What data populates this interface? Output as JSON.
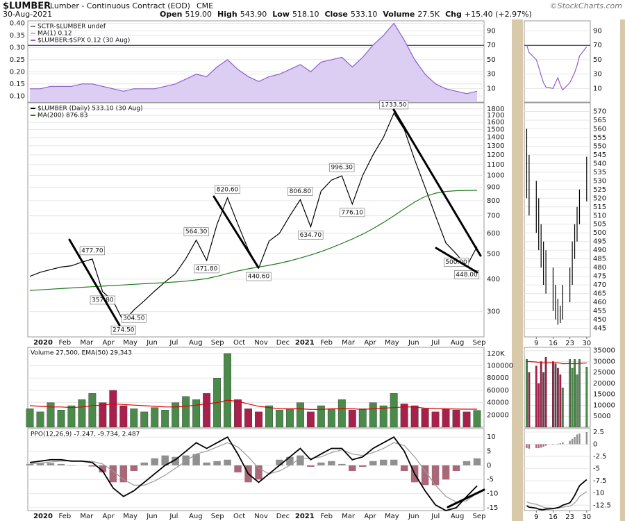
{
  "header": {
    "symbol": "$LUMBER",
    "name": "Lumber - Continuous Contract (EOD)",
    "exchange": "CME",
    "credit": "©StockCharts.com",
    "date": "30-Aug-2021",
    "quote": [
      {
        "label": "Open",
        "value": "519.00"
      },
      {
        "label": "High",
        "value": "543.90"
      },
      {
        "label": "Low",
        "value": "518.10"
      },
      {
        "label": "Close",
        "value": "533.10"
      },
      {
        "label": "Volume",
        "value": "27.5K"
      },
      {
        "label": "Chg",
        "value": "+15.40 (+2.97%)"
      }
    ]
  },
  "chart_data": [
    {
      "type": "area",
      "legend_text": [
        "SCTR-$LUMBER undef",
        "MA(1) 0.12"
      ],
      "series": [
        {
          "name": "$LUMBER:$SPX 0.12 (30 Aug)",
          "type": "area",
          "color": "#8c60c8",
          "fill": "#dccdf3",
          "values": [
            0.13,
            0.13,
            0.14,
            0.14,
            0.14,
            0.15,
            0.15,
            0.14,
            0.13,
            0.12,
            0.13,
            0.13,
            0.13,
            0.14,
            0.15,
            0.17,
            0.19,
            0.18,
            0.22,
            0.25,
            0.21,
            0.18,
            0.16,
            0.18,
            0.19,
            0.21,
            0.23,
            0.2,
            0.24,
            0.25,
            0.26,
            0.22,
            0.26,
            0.31,
            0.35,
            0.4,
            0.33,
            0.25,
            0.19,
            0.15,
            0.13,
            0.12,
            0.11,
            0.12
          ]
        }
      ],
      "ylim": [
        0.075,
        0.41
      ],
      "yticks": [
        {
          "value": 0.1,
          "label": "0.10"
        },
        {
          "value": 0.15,
          "label": "0.15"
        },
        {
          "value": 0.2,
          "label": "0.20"
        },
        {
          "value": 0.25,
          "label": "0.25"
        },
        {
          "value": 0.3,
          "label": "0.30"
        },
        {
          "value": 0.35,
          "label": "0.35"
        },
        {
          "value": 0.4,
          "label": "0.40"
        }
      ],
      "y2lim": [
        -9,
        104
      ],
      "y2ticks": [
        10,
        30,
        50,
        70,
        90
      ],
      "reference_line": 70,
      "grid": true
    },
    {
      "type": "line",
      "log_scale": true,
      "grid": true,
      "series": [
        {
          "name": "$LUMBER (Daily) 533.10 (30 Aug)",
          "type": "line",
          "color": "#000000",
          "values": [
            410,
            425,
            435,
            445,
            450,
            465,
            477.7,
            357.8,
            330,
            274.5,
            304.5,
            330,
            360,
            390,
            420,
            480,
            564.3,
            471.8,
            650,
            820.6,
            650,
            520,
            440.6,
            560,
            600,
            700,
            806.8,
            634.7,
            870,
            960,
            996.3,
            776.1,
            1000,
            1200,
            1400,
            1733.5,
            1500,
            1150,
            900,
            700,
            550,
            500,
            448,
            533.1
          ]
        },
        {
          "name": "MA(200) 876.83",
          "type": "line",
          "color": "#1e7a1e",
          "values": [
            362,
            364,
            366,
            368,
            370,
            372,
            374,
            376,
            378,
            380,
            382,
            384,
            386,
            388,
            390,
            393,
            397,
            402,
            410,
            420,
            430,
            438,
            445,
            452,
            460,
            470,
            482,
            495,
            510,
            528,
            548,
            570,
            595,
            625,
            660,
            700,
            745,
            790,
            830,
            855,
            868,
            874,
            876,
            876.83
          ]
        }
      ],
      "annotations": [
        {
          "value": 477.7,
          "label": "477.70"
        },
        {
          "value": 357.8,
          "label": "357.80"
        },
        {
          "value": 274.5,
          "label": "274.50"
        },
        {
          "value": 304.5,
          "label": "304.50"
        },
        {
          "value": 564.3,
          "label": "564.30"
        },
        {
          "value": 471.8,
          "label": "471.80"
        },
        {
          "value": 820.6,
          "label": "820.60"
        },
        {
          "value": 440.6,
          "label": "440.60"
        },
        {
          "value": 806.8,
          "label": "806.80"
        },
        {
          "value": 634.7,
          "label": "634.70"
        },
        {
          "value": 996.3,
          "label": "996.30"
        },
        {
          "value": 776.1,
          "label": "776.10"
        },
        {
          "value": 1733.5,
          "label": "1733.50"
        },
        {
          "value": 500,
          "label": "500.00"
        },
        {
          "value": 448,
          "label": "448.00"
        }
      ],
      "ylim": [
        240,
        1900
      ],
      "yticks": [
        300,
        400,
        500,
        600,
        700,
        800,
        900,
        1000,
        1100,
        1200,
        1300,
        1400,
        1500,
        1600,
        1700,
        1800
      ],
      "x_labels": [
        "2020",
        "Feb",
        "Mar",
        "Apr",
        "May",
        "Jun",
        "Jul",
        "Aug",
        "Sep",
        "Oct",
        "Nov",
        "Dec",
        "2021",
        "Feb",
        "Mar",
        "Apr",
        "May",
        "Jun",
        "Jul",
        "Aug",
        "Sep"
      ]
    },
    {
      "type": "bar",
      "title": "Volume 27,500, EMA(50) 29,343",
      "up_color": "#4a8a4a",
      "down_color": "#a8204c",
      "grid": true,
      "series": [
        {
          "type": "bar",
          "values": [
            30000,
            25000,
            40000,
            28000,
            35000,
            45000,
            55000,
            40000,
            60000,
            35000,
            30000,
            25000,
            32000,
            28000,
            40000,
            50000,
            45000,
            55000,
            80000,
            120000,
            45000,
            30000,
            25000,
            35000,
            28000,
            30000,
            40000,
            25000,
            35000,
            30000,
            45000,
            28000,
            30000,
            40000,
            35000,
            55000,
            38000,
            35000,
            30000,
            25000,
            30000,
            28000,
            25000,
            27500
          ]
        },
        {
          "type": "line",
          "color": "#e00000",
          "values": [
            35000,
            34000,
            33000,
            33000,
            32000,
            33000,
            35000,
            36000,
            38000,
            37000,
            36000,
            35000,
            34000,
            33000,
            33000,
            34000,
            36000,
            38000,
            40000,
            44000,
            42000,
            38000,
            34000,
            32000,
            30000,
            30000,
            30000,
            29000,
            29000,
            30000,
            30000,
            30000,
            29000,
            30000,
            31000,
            32000,
            33000,
            33000,
            31000,
            30000,
            30000,
            29500,
            29400,
            29343
          ]
        }
      ],
      "ylim": [
        0,
        130000
      ],
      "yticks": [
        20000,
        40000,
        60000,
        80000,
        100000,
        {
          "value": 120000,
          "label": "120K"
        }
      ]
    },
    {
      "type": "line",
      "title": "PPO(12,26,9) -7.247, -9.734, 2.487",
      "grid": true,
      "positive_color": "#909090",
      "negative_color": "#a86878",
      "series": [
        {
          "type": "histogram",
          "values": [
            0.5,
            0.7,
            0.8,
            0.5,
            -0.1,
            0,
            -0.4,
            -2.5,
            -6,
            -6,
            -2,
            1,
            2.5,
            3.5,
            3,
            3.5,
            4,
            1,
            1.5,
            2,
            -2.5,
            -6,
            -5,
            0,
            2,
            3,
            3.5,
            -0.5,
            1,
            1.5,
            0.5,
            -2,
            -0.5,
            1.5,
            2,
            2,
            -2,
            -6,
            -7,
            -7,
            -5,
            -2,
            1.5,
            2.487
          ]
        },
        {
          "type": "line",
          "color": "#999999",
          "values": [
            0.5,
            0.8,
            1.2,
            1.5,
            1.6,
            1.5,
            1.4,
            0.5,
            -2,
            -5,
            -7,
            -7,
            -5.5,
            -3.5,
            -1,
            1.5,
            4,
            5,
            6.5,
            8,
            6.5,
            3,
            -1,
            -3,
            -2,
            0,
            2.5,
            2.5,
            3,
            4.5,
            5.5,
            4,
            3.5,
            4.5,
            6,
            8,
            7,
            3,
            -2,
            -7,
            -11,
            -13,
            -12.5,
            -9.734
          ]
        },
        {
          "type": "line",
          "color": "#000000",
          "values": [
            1,
            1.5,
            2,
            2,
            1.5,
            1.5,
            1,
            -2,
            -8,
            -11,
            -9,
            -6,
            -3,
            0,
            2,
            5,
            8,
            6,
            8,
            10,
            4,
            -3,
            -6,
            -3,
            0,
            3,
            6,
            2,
            4,
            6,
            6,
            2,
            3,
            6,
            8,
            10,
            5,
            -3,
            -9,
            -14,
            -16,
            -15,
            -11,
            -7.247
          ]
        }
      ],
      "ylim": [
        -16,
        13
      ],
      "yticks": [
        10,
        5,
        0,
        -5,
        -10,
        -15
      ],
      "x_labels": [
        "2020",
        "Feb",
        "Mar",
        "Apr",
        "May",
        "Jun",
        "Jul",
        "Aug",
        "Sep",
        "Oct",
        "Nov",
        "Dec",
        "2021",
        "Feb",
        "Mar",
        "Apr",
        "May",
        "Jun",
        "Jul",
        "Aug",
        "Sep"
      ]
    },
    {
      "type": "line",
      "x": [
        5,
        6,
        9,
        10,
        11,
        12,
        13,
        16,
        17,
        18,
        19,
        20,
        23,
        24,
        25,
        26,
        27,
        30
      ],
      "xlim": [
        4,
        31.5
      ],
      "series": [
        {
          "type": "line",
          "axis": "y2",
          "color": "#8c60c8",
          "values": [
            70,
            60,
            50,
            40,
            28,
            18,
            12,
            10,
            18,
            25,
            15,
            8,
            18,
            25,
            32,
            42,
            55,
            68
          ]
        }
      ],
      "y2lim": [
        -9,
        104
      ],
      "y2ticks": [
        10,
        30,
        50,
        70,
        90
      ],
      "reference_line": 70,
      "grid": true
    },
    {
      "type": "range",
      "x": [
        5,
        6,
        9,
        10,
        11,
        12,
        13,
        16,
        17,
        18,
        19,
        20,
        23,
        24,
        25,
        26,
        27,
        30
      ],
      "xlim": [
        4,
        31.5
      ],
      "grid": true,
      "series": [
        {
          "type": "range",
          "color": "#000000",
          "high": [
            560,
            545,
            530,
            520,
            505,
            495,
            490,
            480,
            470,
            462,
            458,
            470,
            480,
            495,
            505,
            515,
            525,
            543.9
          ],
          "low": [
            520,
            510,
            500,
            490,
            480,
            470,
            465,
            455,
            450,
            447,
            448,
            450,
            460,
            470,
            485,
            495,
            505,
            518.1
          ]
        }
      ],
      "ylim": [
        440,
        575
      ],
      "yticks": [
        445,
        450,
        455,
        460,
        465,
        470,
        475,
        480,
        485,
        490,
        495,
        500,
        505,
        510,
        515,
        520,
        525,
        530,
        535,
        540,
        545,
        550,
        555,
        560,
        565,
        570
      ],
      "xticks": [
        9,
        16,
        23,
        30
      ]
    },
    {
      "type": "bar",
      "x": [
        5,
        6,
        9,
        10,
        11,
        12,
        13,
        16,
        17,
        18,
        19,
        20,
        23,
        24,
        25,
        26,
        27,
        30
      ],
      "xlim": [
        4,
        31.5
      ],
      "up_color": "#4a8a4a",
      "down_color": "#a8204c",
      "grid": true,
      "series": [
        {
          "type": "bar",
          "values": [
            31000,
            25000,
            28000,
            20000,
            30000,
            25000,
            32000,
            30000,
            29000,
            27000,
            24000,
            18000,
            31000,
            27000,
            31000,
            24000,
            31000,
            27500
          ]
        },
        {
          "type": "line",
          "color": "#e00000",
          "values": [
            30000,
            30000,
            29800,
            29600,
            29500,
            29400,
            29500,
            29500,
            29500,
            29400,
            29300,
            29000,
            29100,
            29000,
            29100,
            29000,
            29200,
            29343
          ]
        }
      ],
      "ylim": [
        0,
        36500
      ],
      "yticks": [
        5000,
        10000,
        15000,
        20000,
        25000,
        30000,
        35000
      ]
    },
    {
      "type": "line",
      "x": [
        5,
        6,
        9,
        10,
        11,
        12,
        13,
        16,
        17,
        18,
        19,
        20,
        23,
        24,
        25,
        26,
        27,
        30
      ],
      "xlim": [
        4,
        31.5
      ],
      "grid": true,
      "positive_color": "#909090",
      "negative_color": "#a86878",
      "series": [
        {
          "type": "histogram",
          "values": [
            -0.8,
            -0.9,
            -0.8,
            -0.8,
            -0.7,
            -0.5,
            -0.3,
            -0.1,
            0,
            0.1,
            0.2,
            0.4,
            0.7,
            1.1,
            1.5,
            2,
            2.2,
            2.487
          ]
        },
        {
          "type": "line",
          "color": "#999999",
          "values": [
            -11.8,
            -12,
            -12.3,
            -12.5,
            -12.7,
            -12.9,
            -13,
            -13.1,
            -13.1,
            -13.1,
            -13,
            -12.9,
            -12.7,
            -12.4,
            -12,
            -11.5,
            -10.7,
            -9.734
          ]
        },
        {
          "type": "line",
          "color": "#000000",
          "values": [
            -12.6,
            -12.9,
            -13.1,
            -13.3,
            -13.4,
            -13.4,
            -13.3,
            -13.2,
            -13.1,
            -13,
            -12.8,
            -12.5,
            -12,
            -11.3,
            -10.5,
            -9.5,
            -8.5,
            -7.247
          ]
        }
      ],
      "ylim": [
        -13.6,
        3.2
      ],
      "yticks": [
        2.5,
        0,
        -2.5,
        -5,
        -7.5,
        -10,
        -12.5
      ],
      "xticks": [
        9,
        16,
        23,
        30
      ]
    }
  ]
}
